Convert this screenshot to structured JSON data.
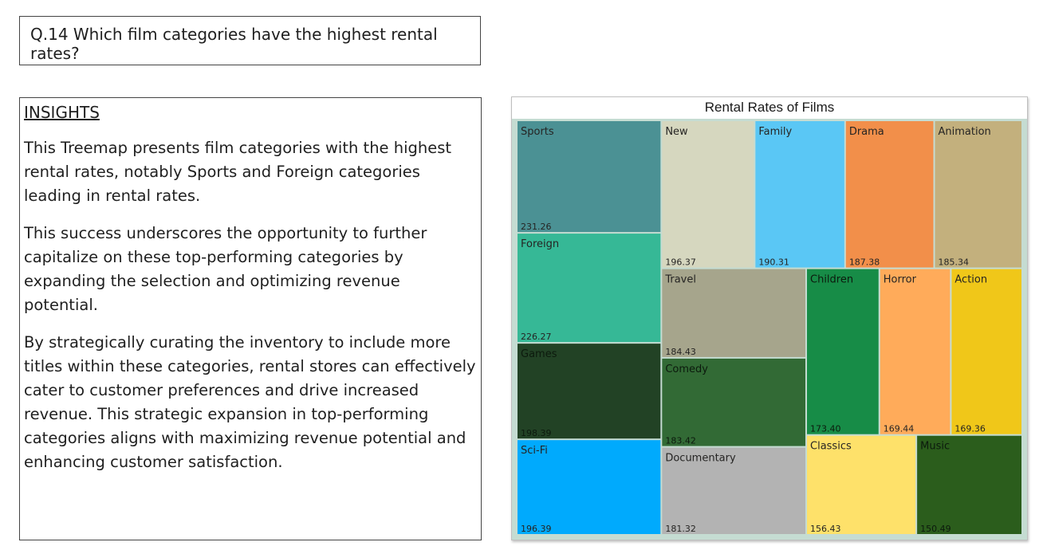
{
  "question": "Q.14 Which film categories have the highest rental rates?",
  "insights": {
    "title": "INSIGHTS",
    "paragraphs": [
      "This Treemap presents film categories with the highest rental rates, notably Sports and Foreign categories leading in rental rates.",
      "This success underscores the opportunity to further capitalize on these top-performing categories by expanding the selection and optimizing revenue potential.",
      "By strategically curating the inventory to include more titles within these categories, rental stores can effectively cater to customer preferences and drive increased revenue. This strategic expansion in top-performing categories aligns with maximizing revenue potential and enhancing customer satisfaction."
    ]
  },
  "chart_data": {
    "type": "treemap",
    "title": "Rental Rates of Films",
    "categories": [
      "Sports",
      "Foreign",
      "Games",
      "Sci-Fi",
      "New",
      "Family",
      "Drama",
      "Animation",
      "Travel",
      "Comedy",
      "Documentary",
      "Children",
      "Horror",
      "Action",
      "Classics",
      "Music"
    ],
    "values": [
      231.26,
      226.27,
      198.39,
      196.39,
      196.37,
      190.31,
      187.38,
      185.34,
      184.43,
      183.42,
      181.32,
      173.4,
      169.44,
      169.36,
      156.43,
      150.49
    ],
    "value_labels": [
      "231.26",
      "226.27",
      "198.39",
      "196.39",
      "196.37",
      "190.31",
      "187.38",
      "185.34",
      "184.43",
      "183.42",
      "181.32",
      "173.40",
      "169.44",
      "169.36",
      "156.43",
      "150.49"
    ],
    "colors": [
      "#4b9194",
      "#36b896",
      "#224225",
      "#00aafd",
      "#d6d7bf",
      "#5ac7f5",
      "#f28f4a",
      "#c3b07d",
      "#a6a58c",
      "#326a35",
      "#b3b3b3",
      "#178c47",
      "#ffab5a",
      "#f0c719",
      "#fee16a",
      "#2b5d1c"
    ],
    "label_colors": [
      "#252423",
      "#252423",
      "#0c1a0d",
      "#252423",
      "#252423",
      "#252423",
      "#252423",
      "#252423",
      "#252423",
      "#0c1a0d",
      "#252423",
      "#0c1a0d",
      "#252423",
      "#252423",
      "#252423",
      "#0c1a0d"
    ],
    "background": "#c5dcd2"
  }
}
